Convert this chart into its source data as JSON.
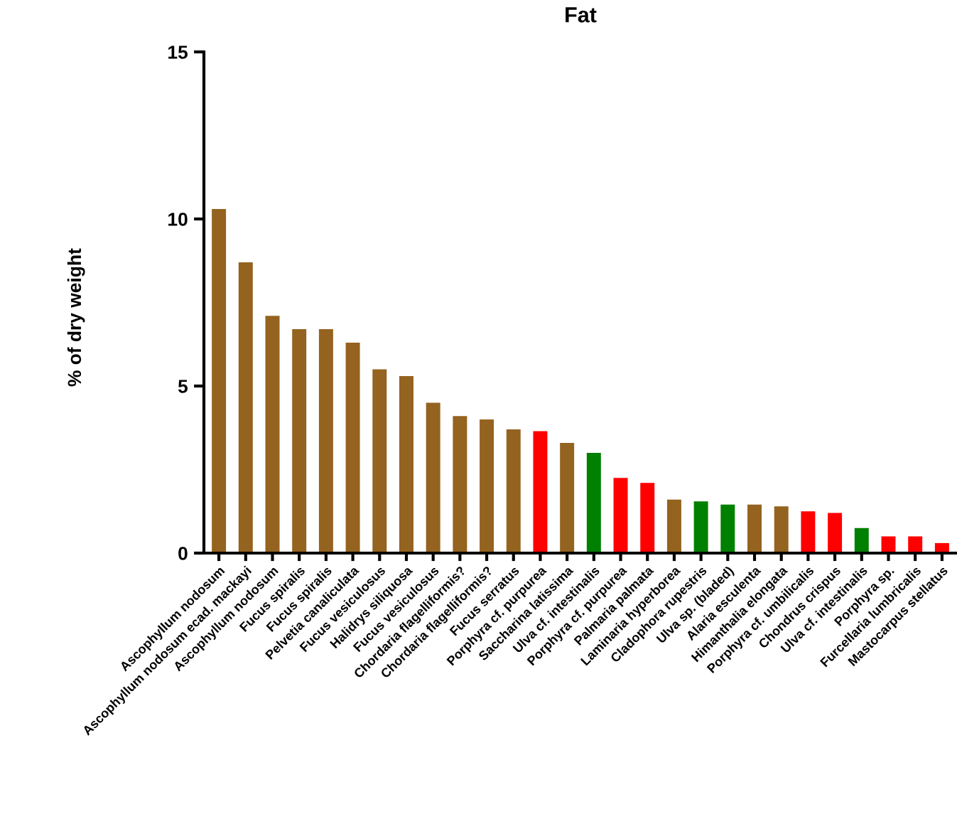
{
  "chart_data": {
    "type": "bar",
    "title": "Fat",
    "ylabel": "% of dry weight",
    "categories": [
      "Ascophyllum nodosum",
      "Ascophyllum nodosum ecad. mackayi",
      "Ascophyllum nodosum",
      "Fucus spiralis",
      "Fucus spiralis",
      "Pelvetia canaliculata",
      "Fucus vesiculosus",
      "Halidrys siliquosa",
      "Fucus vesiculosus",
      "Chordaria flagelliformis?",
      "Chordaria flagelliformis?",
      "Fucus serratus",
      "Porphyra cf. purpurea",
      "Saccharina latissima",
      "Ulva cf. intestinalis",
      "Porphyra cf. purpurea",
      "Palmaria palmata",
      "Laminaria hyperborea",
      "Cladophora rupestris",
      "Ulva sp. (bladed)",
      "Alaria esculenta",
      "Himanthalia elongata",
      "Porphyra cf. umbilicalis",
      "Chondrus crispus",
      "Ulva cf. intestinalis",
      "Porphyra sp.",
      "Furcellaria lumbricalis",
      "Mastocarpus stellatus"
    ],
    "values": [
      10.3,
      8.7,
      7.1,
      6.7,
      6.7,
      6.3,
      5.5,
      5.3,
      4.5,
      4.1,
      4.0,
      3.7,
      3.65,
      3.3,
      3.0,
      2.25,
      2.1,
      1.6,
      1.55,
      1.45,
      1.45,
      1.4,
      1.25,
      1.2,
      0.75,
      0.5,
      0.5,
      0.3
    ],
    "colors": [
      "#946320",
      "#946320",
      "#946320",
      "#946320",
      "#946320",
      "#946320",
      "#946320",
      "#946320",
      "#946320",
      "#946320",
      "#946320",
      "#946320",
      "#ff0000",
      "#946320",
      "#008000",
      "#ff0000",
      "#ff0000",
      "#946320",
      "#008000",
      "#008000",
      "#946320",
      "#946320",
      "#ff0000",
      "#ff0000",
      "#008000",
      "#ff0000",
      "#ff0000",
      "#ff0000"
    ],
    "ylim": [
      0,
      15
    ],
    "yticks": [
      0,
      5,
      10,
      15
    ]
  }
}
